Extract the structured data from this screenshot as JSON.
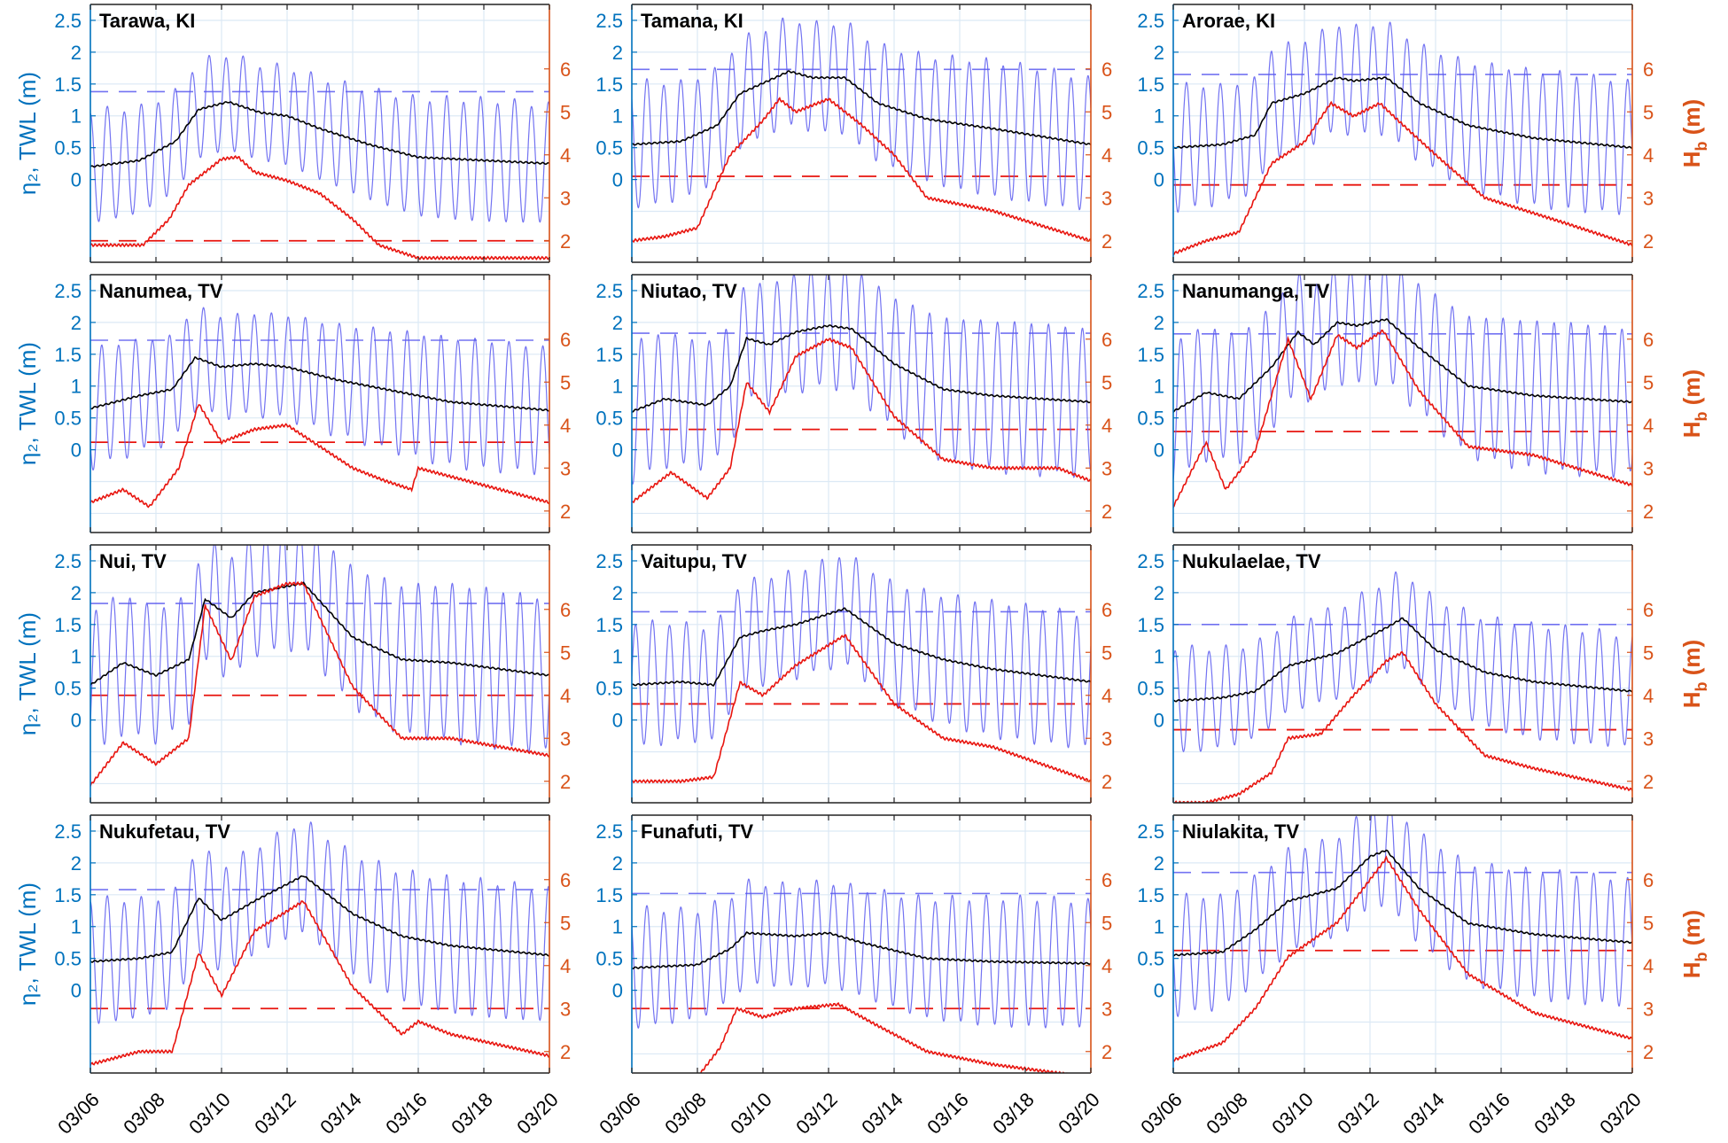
{
  "figure": {
    "left_axis_label": "η₂, TWL (m)",
    "right_axis_label": "H_b (m)",
    "colors": {
      "left_axis": "#0072bd",
      "right_axis": "#d95319",
      "tide": "#5b5bf0",
      "twl": "#000000",
      "hb": "#e8140e",
      "grid": "#dce9f5"
    }
  },
  "chart_data": [
    {
      "type": "line",
      "title": "Tarawa, KI",
      "tidal_range": 0.85,
      "twl_threshold": 1.38,
      "hb_threshold": 2.0,
      "twl_key": [
        [
          0,
          0.2
        ],
        [
          1.5,
          0.3
        ],
        [
          2.6,
          0.6
        ],
        [
          3.3,
          1.1
        ],
        [
          4.2,
          1.22
        ],
        [
          5.2,
          1.05
        ],
        [
          6,
          1.0
        ],
        [
          7,
          0.8
        ],
        [
          8.5,
          0.55
        ],
        [
          10,
          0.35
        ],
        [
          12,
          0.3
        ],
        [
          14,
          0.25
        ]
      ],
      "hb_key": [
        [
          1.6,
          1.9
        ],
        [
          2.4,
          2.5
        ],
        [
          3,
          3.3
        ],
        [
          4,
          3.9
        ],
        [
          4.5,
          3.95
        ],
        [
          5,
          3.6
        ],
        [
          6,
          3.4
        ],
        [
          7,
          3.1
        ],
        [
          8,
          2.5
        ],
        [
          8.8,
          1.9
        ],
        [
          10,
          1.6
        ]
      ]
    },
    {
      "type": "line",
      "title": "Tamana, KI",
      "tidal_range": 0.95,
      "twl_threshold": 1.73,
      "hb_threshold": 3.5,
      "twl_key": [
        [
          0,
          0.55
        ],
        [
          1.5,
          0.6
        ],
        [
          2.6,
          0.85
        ],
        [
          3.3,
          1.35
        ],
        [
          4.8,
          1.7
        ],
        [
          5.5,
          1.6
        ],
        [
          6.5,
          1.6
        ],
        [
          7.5,
          1.2
        ],
        [
          9,
          0.95
        ],
        [
          11,
          0.8
        ],
        [
          14,
          0.55
        ]
      ],
      "hb_key": [
        [
          0,
          2.0
        ],
        [
          1,
          2.1
        ],
        [
          2,
          2.3
        ],
        [
          3,
          4.0
        ],
        [
          4,
          4.8
        ],
        [
          4.5,
          5.3
        ],
        [
          5,
          5.0
        ],
        [
          6,
          5.3
        ],
        [
          7,
          4.7
        ],
        [
          8,
          4.0
        ],
        [
          9,
          3.0
        ],
        [
          11,
          2.7
        ],
        [
          14,
          2.0
        ]
      ]
    },
    {
      "type": "line",
      "title": "Arorae, KI",
      "tidal_range": 0.95,
      "twl_threshold": 1.65,
      "hb_threshold": 3.3,
      "twl_key": [
        [
          0,
          0.5
        ],
        [
          1.5,
          0.55
        ],
        [
          2.5,
          0.7
        ],
        [
          3,
          1.2
        ],
        [
          4,
          1.35
        ],
        [
          5,
          1.6
        ],
        [
          5.5,
          1.55
        ],
        [
          6.5,
          1.6
        ],
        [
          7.5,
          1.2
        ],
        [
          9,
          0.85
        ],
        [
          11,
          0.65
        ],
        [
          14,
          0.5
        ]
      ],
      "hb_key": [
        [
          0,
          1.7
        ],
        [
          1,
          2.0
        ],
        [
          2,
          2.2
        ],
        [
          3,
          3.8
        ],
        [
          4,
          4.3
        ],
        [
          4.8,
          5.2
        ],
        [
          5.5,
          4.9
        ],
        [
          6.3,
          5.2
        ],
        [
          7,
          4.7
        ],
        [
          8,
          4.0
        ],
        [
          9.5,
          3.0
        ],
        [
          12,
          2.4
        ],
        [
          14,
          1.9
        ]
      ]
    },
    {
      "type": "line",
      "title": "Nanumea, TV",
      "tidal_range": 0.9,
      "twl_threshold": 1.72,
      "hb_threshold": 3.6,
      "twl_key": [
        [
          0,
          0.65
        ],
        [
          1.5,
          0.85
        ],
        [
          2.5,
          0.95
        ],
        [
          3.2,
          1.45
        ],
        [
          4,
          1.3
        ],
        [
          5,
          1.35
        ],
        [
          6,
          1.3
        ],
        [
          7.5,
          1.1
        ],
        [
          9,
          0.95
        ],
        [
          11,
          0.75
        ],
        [
          14,
          0.62
        ]
      ],
      "hb_key": [
        [
          0,
          2.2
        ],
        [
          1,
          2.5
        ],
        [
          1.8,
          2.1
        ],
        [
          2.7,
          3.0
        ],
        [
          3.3,
          4.5
        ],
        [
          4,
          3.6
        ],
        [
          5,
          3.9
        ],
        [
          6,
          4.0
        ],
        [
          7,
          3.5
        ],
        [
          8,
          3.0
        ],
        [
          9,
          2.7
        ],
        [
          9.8,
          2.5
        ],
        [
          10,
          3.0
        ],
        [
          11,
          2.8
        ],
        [
          12.5,
          2.5
        ],
        [
          14,
          2.2
        ]
      ]
    },
    {
      "type": "line",
      "title": "Niutao, TV",
      "tidal_range": 1.05,
      "twl_threshold": 1.83,
      "hb_threshold": 3.9,
      "twl_key": [
        [
          0,
          0.6
        ],
        [
          1,
          0.8
        ],
        [
          2.3,
          0.7
        ],
        [
          3,
          1.0
        ],
        [
          3.5,
          1.75
        ],
        [
          4.2,
          1.65
        ],
        [
          5,
          1.85
        ],
        [
          6,
          1.95
        ],
        [
          6.7,
          1.9
        ],
        [
          8,
          1.35
        ],
        [
          9.5,
          0.95
        ],
        [
          11,
          0.85
        ],
        [
          14,
          0.75
        ]
      ],
      "hb_key": [
        [
          0,
          2.2
        ],
        [
          1.2,
          2.9
        ],
        [
          2.3,
          2.3
        ],
        [
          3,
          3.0
        ],
        [
          3.5,
          5.0
        ],
        [
          4.2,
          4.3
        ],
        [
          5,
          5.6
        ],
        [
          6,
          6.0
        ],
        [
          6.7,
          5.8
        ],
        [
          8,
          4.2
        ],
        [
          9.5,
          3.2
        ],
        [
          11,
          3.0
        ],
        [
          13,
          3.0
        ],
        [
          14,
          2.7
        ]
      ]
    },
    {
      "type": "line",
      "title": "Nanumanga, TV",
      "tidal_range": 1.05,
      "twl_threshold": 1.82,
      "hb_threshold": 3.85,
      "twl_key": [
        [
          0,
          0.6
        ],
        [
          1,
          0.9
        ],
        [
          2,
          0.8
        ],
        [
          3,
          1.3
        ],
        [
          3.8,
          1.85
        ],
        [
          4.3,
          1.65
        ],
        [
          5,
          2.0
        ],
        [
          5.6,
          1.95
        ],
        [
          6.5,
          2.05
        ],
        [
          7.5,
          1.6
        ],
        [
          9,
          1.0
        ],
        [
          11,
          0.85
        ],
        [
          14,
          0.75
        ]
      ],
      "hb_key": [
        [
          0,
          2.1
        ],
        [
          1,
          3.6
        ],
        [
          1.6,
          2.5
        ],
        [
          2.5,
          3.4
        ],
        [
          3.5,
          6.0
        ],
        [
          4.2,
          4.6
        ],
        [
          5,
          6.1
        ],
        [
          5.6,
          5.8
        ],
        [
          6.4,
          6.2
        ],
        [
          7.5,
          4.8
        ],
        [
          9,
          3.5
        ],
        [
          11,
          3.3
        ],
        [
          14,
          2.6
        ]
      ]
    },
    {
      "type": "line",
      "title": "Nui, TV",
      "tidal_range": 1.1,
      "twl_threshold": 1.83,
      "hb_threshold": 4.0,
      "twl_key": [
        [
          0,
          0.55
        ],
        [
          1,
          0.9
        ],
        [
          2,
          0.7
        ],
        [
          3,
          0.95
        ],
        [
          3.5,
          1.9
        ],
        [
          4.3,
          1.6
        ],
        [
          5,
          2.0
        ],
        [
          6,
          2.1
        ],
        [
          6.5,
          2.15
        ],
        [
          8,
          1.3
        ],
        [
          9.5,
          0.95
        ],
        [
          11,
          0.9
        ],
        [
          14,
          0.7
        ]
      ],
      "hb_key": [
        [
          0,
          1.9
        ],
        [
          1,
          2.9
        ],
        [
          2,
          2.4
        ],
        [
          3,
          3.0
        ],
        [
          3.5,
          6.1
        ],
        [
          4.3,
          4.8
        ],
        [
          5,
          6.3
        ],
        [
          6,
          6.6
        ],
        [
          6.5,
          6.6
        ],
        [
          8,
          4.2
        ],
        [
          9.5,
          3.0
        ],
        [
          11,
          3.0
        ],
        [
          14,
          2.6
        ]
      ]
    },
    {
      "type": "line",
      "title": "Vaitupu, TV",
      "tidal_range": 0.95,
      "twl_threshold": 1.7,
      "hb_threshold": 3.8,
      "twl_key": [
        [
          0,
          0.55
        ],
        [
          1.5,
          0.6
        ],
        [
          2.5,
          0.55
        ],
        [
          3.3,
          1.3
        ],
        [
          4,
          1.4
        ],
        [
          5,
          1.5
        ],
        [
          6.5,
          1.75
        ],
        [
          8,
          1.2
        ],
        [
          9.5,
          0.95
        ],
        [
          11,
          0.8
        ],
        [
          14,
          0.6
        ]
      ],
      "hb_key": [
        [
          0,
          2.0
        ],
        [
          1.5,
          2.0
        ],
        [
          2.5,
          2.1
        ],
        [
          3.3,
          4.3
        ],
        [
          4,
          4.0
        ],
        [
          5,
          4.7
        ],
        [
          6.5,
          5.4
        ],
        [
          8,
          3.8
        ],
        [
          9.5,
          3.0
        ],
        [
          11,
          2.8
        ],
        [
          14,
          2.0
        ]
      ]
    },
    {
      "type": "line",
      "title": "Nukulaelae, TV",
      "tidal_range": 0.8,
      "twl_threshold": 1.5,
      "hb_threshold": 3.2,
      "twl_key": [
        [
          0,
          0.3
        ],
        [
          1.5,
          0.35
        ],
        [
          2.5,
          0.45
        ],
        [
          3.5,
          0.85
        ],
        [
          5,
          1.05
        ],
        [
          6.5,
          1.45
        ],
        [
          7,
          1.6
        ],
        [
          8,
          1.1
        ],
        [
          9.5,
          0.75
        ],
        [
          11,
          0.6
        ],
        [
          14,
          0.45
        ]
      ],
      "hb_key": [
        [
          1,
          1.5
        ],
        [
          2,
          1.7
        ],
        [
          3,
          2.2
        ],
        [
          3.5,
          3.0
        ],
        [
          4.5,
          3.1
        ],
        [
          5.5,
          4.0
        ],
        [
          6.5,
          4.8
        ],
        [
          7,
          5.0
        ],
        [
          8,
          3.8
        ],
        [
          9.5,
          2.6
        ],
        [
          11,
          2.3
        ],
        [
          14,
          1.8
        ]
      ]
    },
    {
      "type": "line",
      "title": "Nukufetau, TV",
      "tidal_range": 0.95,
      "twl_threshold": 1.58,
      "hb_threshold": 3.0,
      "twl_key": [
        [
          0,
          0.45
        ],
        [
          1.5,
          0.5
        ],
        [
          2.5,
          0.6
        ],
        [
          3.3,
          1.45
        ],
        [
          4,
          1.1
        ],
        [
          5,
          1.4
        ],
        [
          6.5,
          1.8
        ],
        [
          8,
          1.2
        ],
        [
          9.5,
          0.85
        ],
        [
          11,
          0.7
        ],
        [
          14,
          0.55
        ]
      ],
      "hb_key": [
        [
          0,
          1.7
        ],
        [
          1.5,
          2.0
        ],
        [
          2.5,
          2.0
        ],
        [
          3.3,
          4.3
        ],
        [
          4,
          3.3
        ],
        [
          5,
          4.8
        ],
        [
          6.5,
          5.5
        ],
        [
          8,
          3.5
        ],
        [
          9.5,
          2.4
        ],
        [
          10,
          2.7
        ],
        [
          11,
          2.4
        ],
        [
          14,
          1.9
        ]
      ]
    },
    {
      "type": "line",
      "title": "Funafuti, TV",
      "tidal_range": 0.9,
      "twl_threshold": 1.52,
      "hb_threshold": 3.0,
      "twl_key": [
        [
          0,
          0.35
        ],
        [
          2,
          0.4
        ],
        [
          3,
          0.65
        ],
        [
          3.5,
          0.9
        ],
        [
          5,
          0.85
        ],
        [
          6,
          0.9
        ],
        [
          7,
          0.75
        ],
        [
          9,
          0.5
        ],
        [
          11,
          0.45
        ],
        [
          14,
          0.42
        ]
      ],
      "hb_key": [
        [
          2,
          1.4
        ],
        [
          2.7,
          2.1
        ],
        [
          3.2,
          3.0
        ],
        [
          4,
          2.8
        ],
        [
          5,
          3.0
        ],
        [
          6.3,
          3.1
        ],
        [
          7.5,
          2.6
        ],
        [
          9,
          2.0
        ],
        [
          11,
          1.7
        ],
        [
          13,
          1.5
        ],
        [
          14,
          1.4
        ]
      ]
    },
    {
      "type": "line",
      "title": "Niulakita, TV",
      "tidal_range": 0.9,
      "twl_threshold": 1.85,
      "hb_threshold": 4.35,
      "twl_key": [
        [
          0,
          0.55
        ],
        [
          1.5,
          0.6
        ],
        [
          2.5,
          0.95
        ],
        [
          3.5,
          1.4
        ],
        [
          5,
          1.6
        ],
        [
          6,
          2.1
        ],
        [
          6.5,
          2.2
        ],
        [
          7.5,
          1.6
        ],
        [
          9,
          1.05
        ],
        [
          11,
          0.88
        ],
        [
          14,
          0.75
        ]
      ],
      "hb_key": [
        [
          0,
          1.8
        ],
        [
          1.5,
          2.2
        ],
        [
          2.5,
          3.0
        ],
        [
          3.5,
          4.2
        ],
        [
          5,
          5.0
        ],
        [
          6,
          6.0
        ],
        [
          6.5,
          6.5
        ],
        [
          7.5,
          5.3
        ],
        [
          9,
          3.8
        ],
        [
          11,
          2.9
        ],
        [
          14,
          2.3
        ]
      ]
    }
  ],
  "shared_axes": {
    "x_tick_labels": [
      "03/06",
      "03/08",
      "03/10",
      "03/12",
      "03/14",
      "03/16",
      "03/18",
      "03/20"
    ],
    "left_ticks": [
      "0",
      "0.5",
      "1",
      "1.5",
      "2",
      "2.5"
    ],
    "right_ticks": [
      "2",
      "3",
      "4",
      "5",
      "6"
    ],
    "left_ylim": [
      -1.3,
      2.75
    ],
    "right_ylim": [
      1.5,
      7.5
    ],
    "xlim_days": [
      0,
      14
    ]
  }
}
